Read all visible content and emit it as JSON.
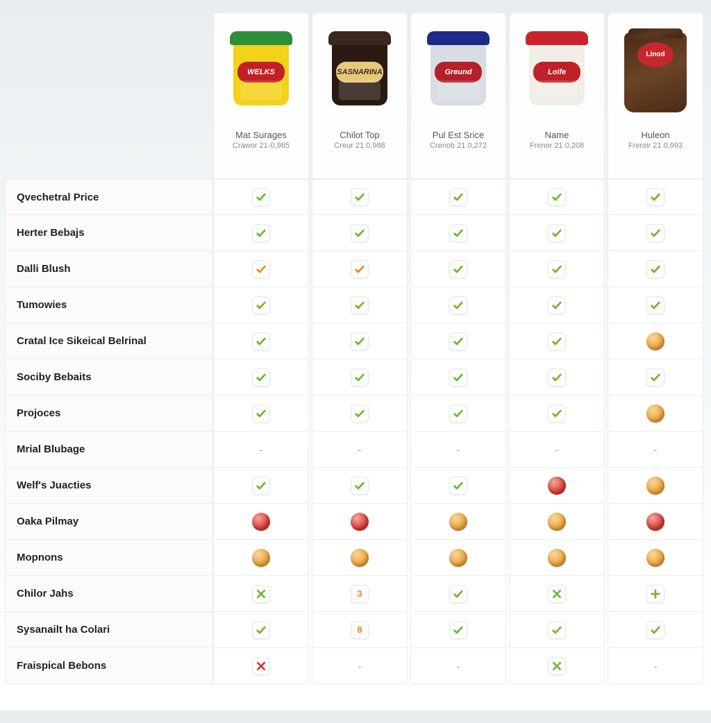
{
  "colors": {
    "check_green": "#6fb52b",
    "check_orange": "#e78a1d",
    "x_red": "#d9362e",
    "x_green": "#73b53a",
    "plus_green": "#73b53a",
    "ball_red": "#d53b34",
    "ball_orange": "#e9a23a",
    "border": "#ececec",
    "row_bg": "#fbfbfb",
    "cell_bg": "#ffffff"
  },
  "products": [
    {
      "name": "Mat Surages",
      "sub": "Crawor 21-0,985",
      "tub_body": "#f2d21a",
      "tub_lid": "#2e8f3a",
      "band_bg": "#c22025",
      "band_fg": "#fff",
      "band_text": "WELKS"
    },
    {
      "name": "Chilot Top",
      "sub": "Creur 21 0,988",
      "tub_body": "#2b1a12",
      "tub_lid": "#3a2821",
      "band_bg": "#e7c87a",
      "band_fg": "#3a2a1f",
      "band_text": "SASNARINA"
    },
    {
      "name": "Pul Est Srice",
      "sub": "Crenob 21 0,272",
      "tub_body": "#d8dde3",
      "tub_lid": "#1b2d89",
      "band_bg": "#b5202b",
      "band_fg": "#fff",
      "band_text": "Greund"
    },
    {
      "name": "Name",
      "sub": "Frenor 21 0,208",
      "tub_body": "#f1eee8",
      "tub_lid": "#c9242d",
      "band_bg": "#c02128",
      "band_fg": "#fff",
      "band_text": "Loife"
    },
    {
      "name": "Huleon",
      "sub": "Freroir 21 0,993",
      "bag_body": "#4a2a16",
      "badge_bg": "#c6272d",
      "badge_fg": "#fff",
      "badge_text": "Linod"
    }
  ],
  "rows": [
    {
      "label": "Qvechetral Price",
      "cells": [
        "check-green",
        "check-green",
        "check-green",
        "check-green",
        "check-green"
      ]
    },
    {
      "label": "Herter Bebajs",
      "cells": [
        "check-green",
        "check-green",
        "check-green",
        "check-green",
        "check-green"
      ]
    },
    {
      "label": "Dalli Blush",
      "cells": [
        "check-orange",
        "check-orange",
        "check-green",
        "check-green",
        "check-green"
      ]
    },
    {
      "label": "Tumowies",
      "cells": [
        "check-green",
        "check-green",
        "check-green",
        "check-green",
        "check-green"
      ]
    },
    {
      "label": "Cratal Ice Sikeical Belrinal",
      "cells": [
        "check-green",
        "check-green",
        "check-green",
        "check-green",
        "ball-orange"
      ]
    },
    {
      "label": "Sociby Bebaits",
      "cells": [
        "check-green",
        "check-green",
        "check-green",
        "check-green",
        "check-green"
      ]
    },
    {
      "label": "Projoces",
      "cells": [
        "check-green",
        "check-green",
        "check-green",
        "check-green",
        "ball-orange"
      ]
    },
    {
      "label": "Mrial Blubage",
      "cells": [
        "dash",
        "dash",
        "dash",
        "dash",
        "dash"
      ]
    },
    {
      "label": "Welf's Juacties",
      "cells": [
        "check-green",
        "check-green",
        "check-green",
        "ball-red",
        "ball-orange"
      ]
    },
    {
      "label": "Oaka Pilmay",
      "cells": [
        "ball-red",
        "ball-red",
        "ball-orange",
        "ball-orange",
        "ball-red"
      ]
    },
    {
      "label": "Mopnons",
      "cells": [
        "ball-orange",
        "ball-orange",
        "ball-orange",
        "ball-orange",
        "ball-orange"
      ]
    },
    {
      "label": "Chilor Jahs",
      "cells": [
        "x-green",
        "num-3",
        "check-green",
        "x-green",
        "plus-green"
      ]
    },
    {
      "label": "Sysanailt ha Colari",
      "cells": [
        "check-green",
        "num-8",
        "check-green",
        "check-green",
        "check-green"
      ]
    },
    {
      "label": "Fraispical Bebons",
      "cells": [
        "x-red",
        "dash",
        "dash",
        "x-green",
        "dash"
      ]
    }
  ]
}
